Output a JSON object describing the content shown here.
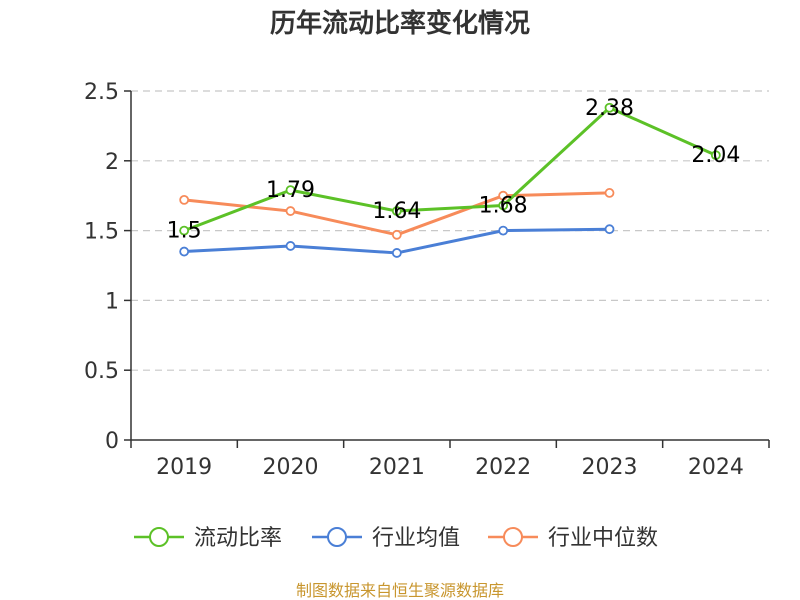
{
  "chart_data": {
    "type": "line",
    "title": "历年流动比率变化情况",
    "categories": [
      "2019",
      "2020",
      "2021",
      "2022",
      "2023",
      "2024"
    ],
    "ylim": [
      0,
      2.5
    ],
    "yticks": [
      "0",
      "0.5",
      "1",
      "1.5",
      "2",
      "2.5"
    ],
    "ytick_values": [
      0,
      0.5,
      1,
      1.5,
      2,
      2.5
    ],
    "grid": true,
    "legend_position": "bottom",
    "series": [
      {
        "name": "流动比率",
        "color": "#5cc127",
        "values": [
          1.5,
          1.79,
          1.64,
          1.68,
          2.38,
          2.04
        ],
        "labels": [
          "1.5",
          "1.79",
          "1.64",
          "1.68",
          "2.38",
          "2.04"
        ]
      },
      {
        "name": "行业均值",
        "color": "#4a7fd6",
        "values": [
          1.35,
          1.39,
          1.34,
          1.5,
          1.51,
          null
        ],
        "labels": []
      },
      {
        "name": "行业中位数",
        "color": "#f78b5a",
        "values": [
          1.72,
          1.64,
          1.47,
          1.75,
          1.77,
          null
        ],
        "labels": []
      }
    ],
    "source": "制图数据来自恒生聚源数据库"
  }
}
